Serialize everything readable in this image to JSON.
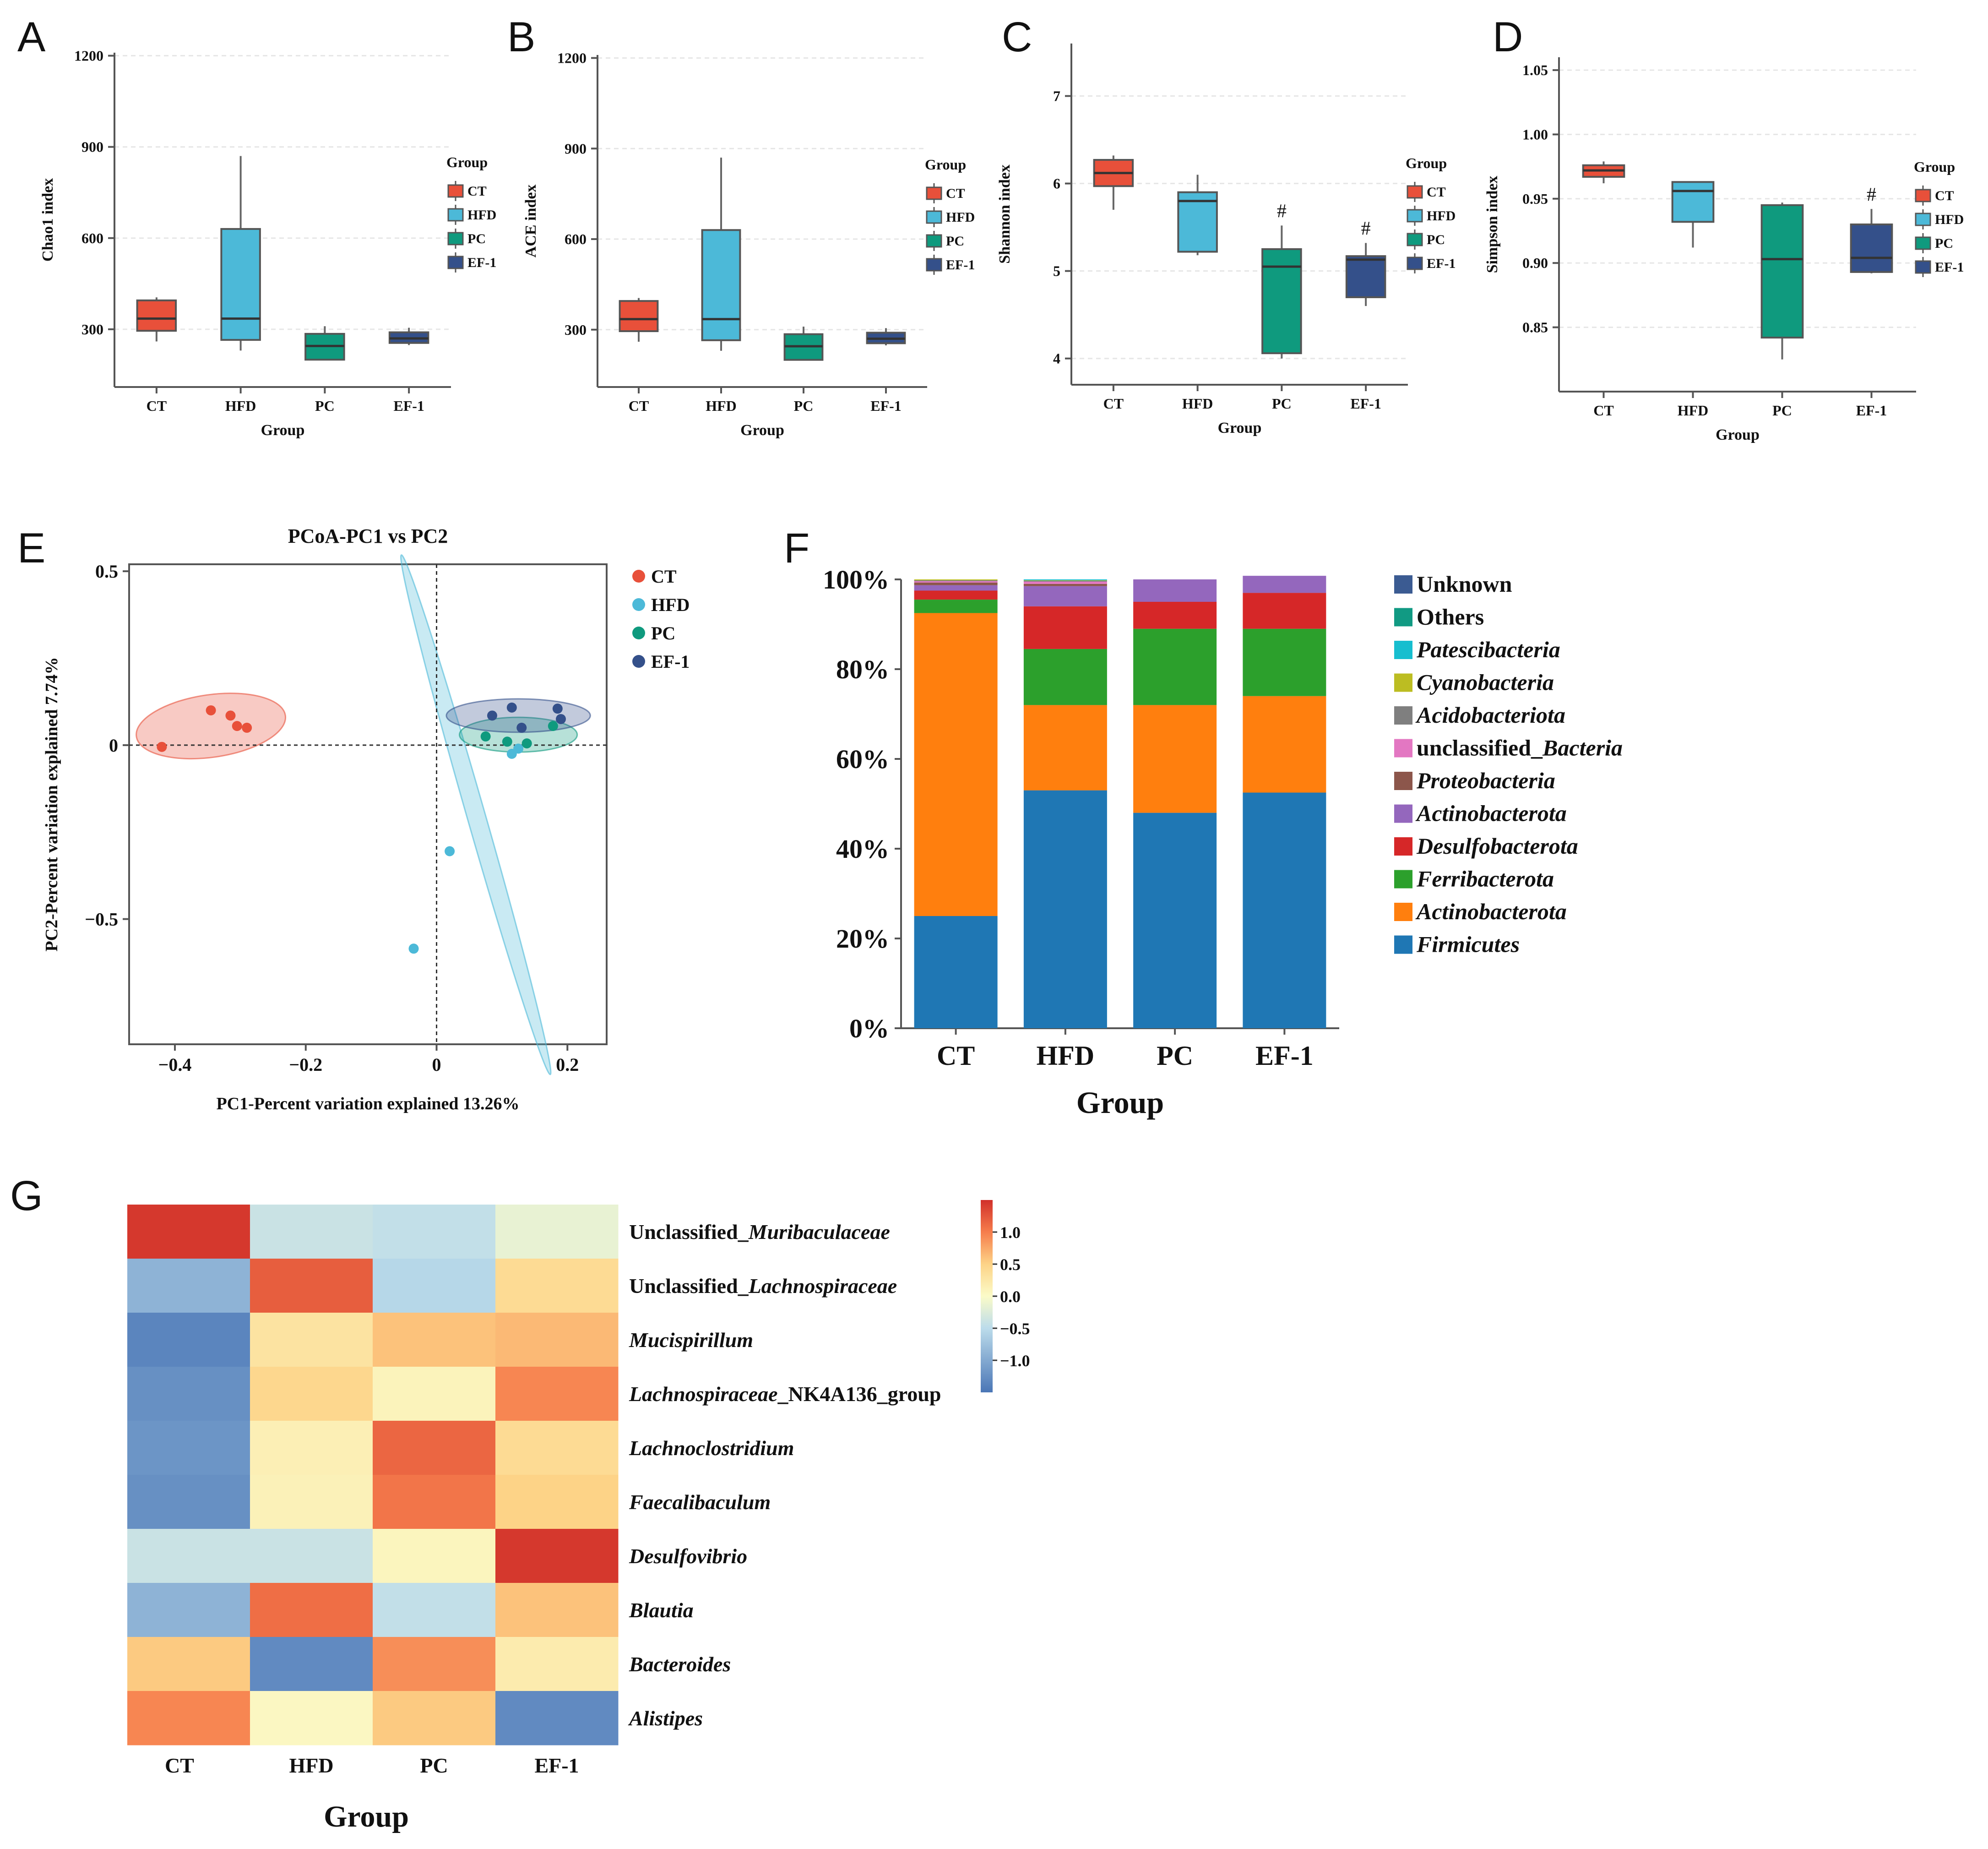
{
  "figure": {
    "panel_letters": [
      "A",
      "B",
      "C",
      "D",
      "E",
      "F",
      "G"
    ],
    "group_colors": {
      "CT": "#e8503a",
      "HFD": "#4cb9d8",
      "PC": "#0f9a7e",
      "EF-1": "#34508a"
    }
  },
  "chart_data": [
    {
      "panel": "A",
      "type": "box",
      "ylabel": "Chao1 index",
      "xlabel": "Group",
      "categories": [
        "CT",
        "HFD",
        "PC",
        "EF-1"
      ],
      "yticks": [
        300,
        600,
        900,
        1200
      ],
      "ylim": [
        110,
        1210
      ],
      "legend_title": "Group",
      "legend": [
        "CT",
        "HFD",
        "PC",
        "EF-1"
      ],
      "boxes": [
        {
          "group": "CT",
          "min": 260,
          "q1": 295,
          "median": 335,
          "q3": 395,
          "max": 405
        },
        {
          "group": "HFD",
          "min": 230,
          "q1": 265,
          "median": 335,
          "q3": 630,
          "max": 870
        },
        {
          "group": "PC",
          "min": 200,
          "q1": 200,
          "median": 245,
          "q3": 285,
          "max": 310
        },
        {
          "group": "EF-1",
          "min": 248,
          "q1": 255,
          "median": 270,
          "q3": 290,
          "max": 305
        }
      ],
      "annotations": []
    },
    {
      "panel": "B",
      "type": "box",
      "ylabel": "ACE index",
      "xlabel": "Group",
      "categories": [
        "CT",
        "HFD",
        "PC",
        "EF-1"
      ],
      "yticks": [
        300,
        600,
        900,
        1200
      ],
      "ylim": [
        110,
        1210
      ],
      "legend_title": "Group",
      "legend": [
        "CT",
        "HFD",
        "PC",
        "EF-1"
      ],
      "boxes": [
        {
          "group": "CT",
          "min": 260,
          "q1": 295,
          "median": 335,
          "q3": 395,
          "max": 405
        },
        {
          "group": "HFD",
          "min": 230,
          "q1": 265,
          "median": 335,
          "q3": 630,
          "max": 870
        },
        {
          "group": "PC",
          "min": 200,
          "q1": 200,
          "median": 245,
          "q3": 285,
          "max": 310
        },
        {
          "group": "EF-1",
          "min": 248,
          "q1": 255,
          "median": 270,
          "q3": 290,
          "max": 305
        }
      ],
      "annotations": []
    },
    {
      "panel": "C",
      "type": "box",
      "ylabel": "Shannon index",
      "xlabel": "Group",
      "categories": [
        "CT",
        "HFD",
        "PC",
        "EF-1"
      ],
      "yticks": [
        4,
        5,
        6,
        7
      ],
      "ylim": [
        3.7,
        7.6
      ],
      "legend_title": "Group",
      "legend": [
        "CT",
        "HFD",
        "PC",
        "EF-1"
      ],
      "boxes": [
        {
          "group": "CT",
          "min": 5.7,
          "q1": 5.97,
          "median": 6.12,
          "q3": 6.27,
          "max": 6.32
        },
        {
          "group": "HFD",
          "min": 5.18,
          "q1": 5.22,
          "median": 5.8,
          "q3": 5.9,
          "max": 6.1
        },
        {
          "group": "PC",
          "min": 4.0,
          "q1": 4.06,
          "median": 5.05,
          "q3": 5.25,
          "max": 5.52
        },
        {
          "group": "EF-1",
          "min": 4.6,
          "q1": 4.7,
          "median": 5.13,
          "q3": 5.17,
          "max": 5.32
        }
      ],
      "annotations": [
        {
          "group": "PC",
          "text": "#"
        },
        {
          "group": "EF-1",
          "text": "#"
        }
      ]
    },
    {
      "panel": "D",
      "type": "box",
      "ylabel": "Simpson index",
      "xlabel": "Group",
      "categories": [
        "CT",
        "HFD",
        "PC",
        "EF-1"
      ],
      "yticks": [
        0.85,
        0.9,
        0.95,
        1.0,
        1.05
      ],
      "ytick_labels": [
        "0.85",
        "0.90",
        "0.95",
        "1.00",
        "1.05"
      ],
      "ylim": [
        0.8,
        1.06
      ],
      "legend_title": "Group",
      "legend": [
        "CT",
        "HFD",
        "PC",
        "EF-1"
      ],
      "boxes": [
        {
          "group": "CT",
          "min": 0.962,
          "q1": 0.967,
          "median": 0.972,
          "q3": 0.976,
          "max": 0.979
        },
        {
          "group": "HFD",
          "min": 0.912,
          "q1": 0.932,
          "median": 0.956,
          "q3": 0.963,
          "max": 0.963
        },
        {
          "group": "PC",
          "min": 0.825,
          "q1": 0.842,
          "median": 0.903,
          "q3": 0.945,
          "max": 0.947
        },
        {
          "group": "EF-1",
          "min": 0.892,
          "q1": 0.893,
          "median": 0.904,
          "q3": 0.93,
          "max": 0.942
        }
      ],
      "annotations": [
        {
          "group": "EF-1",
          "text": "#"
        }
      ]
    },
    {
      "panel": "E",
      "type": "scatter",
      "title": "PCoA-PC1 vs PC2",
      "xlabel": "PC1-Percent variation explained 13.26%",
      "ylabel": "PC2-Percent variation explained 7.74%",
      "xlim": [
        -0.47,
        0.26
      ],
      "ylim": [
        -0.86,
        0.52
      ],
      "xticks": [
        -0.4,
        -0.2,
        0,
        0.2
      ],
      "xtick_labels": [
        "−0.4",
        "−0.2",
        "0",
        "0.2"
      ],
      "yticks": [
        -0.5,
        0,
        0.5
      ],
      "ytick_labels": [
        "−0.5",
        "0",
        "0.5"
      ],
      "series": [
        {
          "name": "CT",
          "points": [
            [
              -0.42,
              -0.005
            ],
            [
              -0.345,
              0.1
            ],
            [
              -0.315,
              0.085
            ],
            [
              -0.305,
              0.055
            ],
            [
              -0.29,
              0.05
            ]
          ]
        },
        {
          "name": "HFD",
          "points": [
            [
              -0.035,
              -0.585
            ],
            [
              0.02,
              -0.305
            ],
            [
              0.115,
              -0.025
            ],
            [
              0.125,
              -0.01
            ]
          ]
        },
        {
          "name": "PC",
          "points": [
            [
              0.075,
              0.025
            ],
            [
              0.108,
              0.01
            ],
            [
              0.138,
              0.005
            ],
            [
              0.178,
              0.055
            ]
          ]
        },
        {
          "name": "EF-1",
          "points": [
            [
              0.085,
              0.085
            ],
            [
              0.115,
              0.108
            ],
            [
              0.13,
              0.05
            ],
            [
              0.185,
              0.105
            ],
            [
              0.19,
              0.075
            ]
          ]
        }
      ],
      "ellipses": [
        {
          "name": "CT",
          "center": [
            -0.345,
            0.055
          ],
          "rx": 0.115,
          "ry": 0.09,
          "angle_deg": 8
        },
        {
          "name": "HFD",
          "center": [
            0.06,
            -0.2
          ],
          "rx": 0.7,
          "ry": 0.026,
          "angle_deg": -74
        },
        {
          "name": "PC",
          "center": [
            0.125,
            0.03
          ],
          "rx": 0.09,
          "ry": 0.05,
          "angle_deg": 0
        },
        {
          "name": "EF-1",
          "center": [
            0.125,
            0.085
          ],
          "rx": 0.11,
          "ry": 0.048,
          "angle_deg": 0
        }
      ]
    },
    {
      "panel": "F",
      "type": "stacked_bar",
      "xlabel": "Group",
      "categories": [
        "CT",
        "HFD",
        "PC",
        "EF-1"
      ],
      "yticks": [
        0,
        20,
        40,
        60,
        80,
        100
      ],
      "ytick_labels": [
        "0%",
        "20%",
        "40%",
        "60%",
        "80%",
        "100%"
      ],
      "series": [
        {
          "name": "Firmicutes",
          "italic": true,
          "color": "#1f77b4",
          "values": [
            25,
            53,
            48,
            52.5
          ]
        },
        {
          "name": "Actinobacterota",
          "italic": true,
          "color": "#ff7f0e",
          "values": [
            67.5,
            19,
            24,
            21.5
          ]
        },
        {
          "name": "Ferribacterota",
          "italic": true,
          "color": "#2ca02c",
          "values": [
            3,
            12.5,
            17,
            15
          ]
        },
        {
          "name": "Desulfobacterota",
          "italic": true,
          "color": "#d62728",
          "values": [
            2,
            9.5,
            6,
            8
          ]
        },
        {
          "name": "Actinobacterota",
          "italic": true,
          "color": "#9467bd",
          "values": [
            1.2,
            4.5,
            5,
            3.8
          ]
        },
        {
          "name": "Proteobacteria",
          "italic": true,
          "color": "#8c564b",
          "values": [
            0.6,
            0.5,
            0,
            0
          ]
        },
        {
          "name": "unclassified_Bacteria",
          "italic": "partial",
          "color": "#e377c2",
          "values": [
            0.3,
            0.5,
            0,
            0
          ]
        },
        {
          "name": "Acidobacteriota",
          "italic": true,
          "color": "#7f7f7f",
          "values": [
            0.2,
            0.2,
            0,
            0
          ]
        },
        {
          "name": "Cyanobacteria",
          "italic": true,
          "color": "#bcbd22",
          "values": [
            0.2,
            0.1,
            0,
            0
          ]
        },
        {
          "name": "Patescibacteria",
          "italic": true,
          "color": "#17becf",
          "values": [
            0,
            0.2,
            0,
            0
          ]
        },
        {
          "name": "Others",
          "italic": false,
          "color": "#119a83",
          "values": [
            0,
            0,
            0,
            0
          ]
        },
        {
          "name": "Unknown",
          "italic": false,
          "color": "#3b5b92",
          "values": [
            0,
            0,
            0,
            0
          ]
        }
      ],
      "legend_order": [
        "Unknown",
        "Others",
        "Patescibacteria",
        "Cyanobacteria",
        "Acidobacteriota",
        "unclassified_Bacteria",
        "Proteobacteria",
        "Actinobacterota",
        "Desulfobacterota",
        "Ferribacterota",
        "Actinobacterota",
        "Firmicutes"
      ]
    },
    {
      "panel": "G",
      "type": "heatmap",
      "xlabel": "Group",
      "columns": [
        "CT",
        "HFD",
        "PC",
        "EF-1"
      ],
      "rows": [
        {
          "prefix": "Unclassified_",
          "name": "Muribaculaceae",
          "suffix": "",
          "values": [
            1.45,
            -0.4,
            -0.45,
            -0.15
          ]
        },
        {
          "prefix": "Unclassified_",
          "name": "Lachnospiraceae",
          "suffix": "",
          "values": [
            -0.9,
            1.2,
            -0.55,
            0.4
          ]
        },
        {
          "prefix": "",
          "name": "Mucispirillum",
          "suffix": "",
          "values": [
            -1.35,
            0.3,
            0.6,
            0.65
          ]
        },
        {
          "prefix": "",
          "name": "Lachnospiraceae",
          "suffix": "_NK4A136_group",
          "values": [
            -1.25,
            0.45,
            0.1,
            0.95
          ]
        },
        {
          "prefix": "",
          "name": "Lachnoclostridium",
          "suffix": "",
          "values": [
            -1.2,
            0.15,
            1.15,
            0.4
          ]
        },
        {
          "prefix": "",
          "name": "Faecalibaculum",
          "suffix": "",
          "values": [
            -1.25,
            0.12,
            1.05,
            0.5
          ]
        },
        {
          "prefix": "",
          "name": "Desulfovibrio",
          "suffix": "",
          "values": [
            -0.4,
            -0.4,
            0.08,
            1.45
          ]
        },
        {
          "prefix": "",
          "name": "Blautia",
          "suffix": "",
          "values": [
            -0.9,
            1.1,
            -0.45,
            0.6
          ]
        },
        {
          "prefix": "",
          "name": "Bacteroides",
          "suffix": "",
          "values": [
            0.55,
            -1.3,
            0.9,
            0.2
          ]
        },
        {
          "prefix": "",
          "name": "Alistipes",
          "suffix": "",
          "values": [
            0.95,
            0.05,
            0.55,
            -1.3
          ]
        }
      ],
      "colorbar_ticks": [
        1.0,
        0.5,
        0.0,
        -0.5,
        -1.0
      ],
      "colorbar_labels": [
        "1.0",
        "0.5",
        "0.0",
        "−0.5",
        "−1.0"
      ],
      "vlim": [
        -1.5,
        1.5
      ]
    }
  ]
}
